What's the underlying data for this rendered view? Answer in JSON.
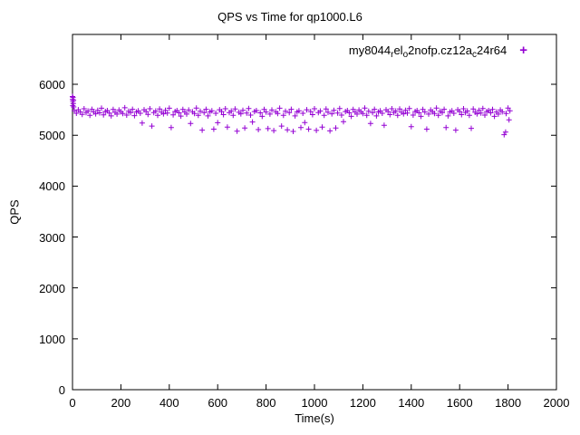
{
  "chart_data": {
    "type": "scatter",
    "title": "QPS vs Time for qp1000.L6",
    "xlabel": "Time(s)",
    "ylabel": "QPS",
    "xlim": [
      0,
      2000
    ],
    "ylim": [
      0,
      6980
    ],
    "x_ticks": [
      0,
      200,
      400,
      600,
      800,
      1000,
      1200,
      1400,
      1600,
      1800,
      2000
    ],
    "y_ticks": [
      0,
      1000,
      2000,
      3000,
      4000,
      5000,
      6000
    ],
    "grid": false,
    "legend_position": "top-right-inside",
    "marker": "plus",
    "marker_color": "#9400d3",
    "legend_marker_glyph": "+",
    "series": [
      {
        "name": "my8044_rel_o2nofp.cz12a_c24r64",
        "name_segments": [
          {
            "text": "my8044",
            "sub": false
          },
          {
            "text": "r",
            "sub": true
          },
          {
            "text": "el",
            "sub": false
          },
          {
            "text": "o",
            "sub": true
          },
          {
            "text": "2nofp.cz12a",
            "sub": false
          },
          {
            "text": "c",
            "sub": true
          },
          {
            "text": "24r64",
            "sub": false
          }
        ],
        "t_start": 0,
        "t_step": 8,
        "qps": [
          5760,
          5480,
          5430,
          5500,
          5460,
          5410,
          5520,
          5445,
          5475,
          5390,
          5510,
          5455,
          5420,
          5490,
          5440,
          5530,
          5400,
          5465,
          5485,
          5435,
          5380,
          5505,
          5450,
          5415,
          5495,
          5460,
          5425,
          5540,
          5395,
          5470,
          5445,
          5510,
          5385,
          5455,
          5480,
          5430,
          5240,
          5500,
          5465,
          5410,
          5520,
          5180,
          5445,
          5475,
          5390,
          5515,
          5450,
          5420,
          5490,
          5435,
          5530,
          5150,
          5400,
          5465,
          5485,
          5440,
          5375,
          5505,
          5455,
          5415,
          5495,
          5230,
          5460,
          5425,
          5535,
          5390,
          5470,
          5100,
          5445,
          5510,
          5380,
          5455,
          5480,
          5120,
          5430,
          5245,
          5500,
          5465,
          5405,
          5520,
          5160,
          5445,
          5475,
          5390,
          5515,
          5080,
          5450,
          5420,
          5490,
          5140,
          5435,
          5525,
          5395,
          5260,
          5465,
          5485,
          5110,
          5440,
          5370,
          5505,
          5455,
          5130,
          5415,
          5495,
          5090,
          5460,
          5425,
          5530,
          5180,
          5390,
          5470,
          5105,
          5445,
          5510,
          5075,
          5380,
          5455,
          5480,
          5150,
          5430,
          5250,
          5500,
          5120,
          5465,
          5405,
          5520,
          5095,
          5445,
          5475,
          5160,
          5390,
          5515,
          5450,
          5085,
          5420,
          5490,
          5140,
          5435,
          5525,
          5395,
          5265,
          5465,
          5485,
          5440,
          5370,
          5505,
          5455,
          5415,
          5495,
          5460,
          5425,
          5535,
          5390,
          5470,
          5230,
          5445,
          5510,
          5380,
          5455,
          5480,
          5430,
          5195,
          5500,
          5465,
          5405,
          5520,
          5445,
          5475,
          5390,
          5515,
          5450,
          5420,
          5490,
          5435,
          5525,
          5170,
          5395,
          5465,
          5485,
          5440,
          5370,
          5505,
          5455,
          5120,
          5415,
          5495,
          5460,
          5425,
          5535,
          5390,
          5470,
          5445,
          5510,
          5150,
          5380,
          5455,
          5480,
          5430,
          5100,
          5500,
          5465,
          5405,
          5520,
          5445,
          5475,
          5390,
          5135,
          5515,
          5450,
          5420,
          5490,
          5435,
          5525,
          5395,
          5465,
          5485,
          5440,
          5505,
          5370,
          5455,
          5415,
          5495,
          5460,
          5010,
          5425,
          5535,
          5480
        ],
        "extra_points": [
          [
            1,
            5580
          ],
          [
            2,
            5740
          ],
          [
            3,
            5620
          ],
          [
            4,
            5690
          ],
          [
            5,
            5555
          ],
          [
            0,
            5700
          ],
          [
            2,
            5660
          ],
          [
            1790,
            5060
          ],
          [
            1804,
            5300
          ]
        ]
      }
    ]
  }
}
